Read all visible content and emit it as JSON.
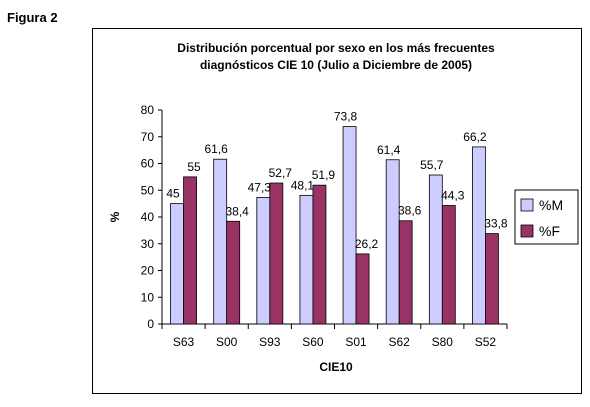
{
  "figure_label": "Figura 2",
  "chart_data": {
    "type": "bar",
    "title_line1": "Distribución porcentual por sexo en los más frecuentes",
    "title_line2": "diagnósticos CIE 10 (Julio a Diciembre de 2005)",
    "xlabel": "CIE10",
    "ylabel": "%",
    "ylim": [
      0,
      80
    ],
    "yticks": [
      0,
      10,
      20,
      30,
      40,
      50,
      60,
      70,
      80
    ],
    "categories": [
      "S63",
      "S00",
      "S93",
      "S60",
      "S01",
      "S62",
      "S80",
      "S52"
    ],
    "series": [
      {
        "name": "%M",
        "color": "#ccccff",
        "values": [
          45,
          61.6,
          47.3,
          48.1,
          73.8,
          61.4,
          55.7,
          66.2
        ],
        "labels": [
          "45",
          "61,6",
          "47,3",
          "48,1",
          "73,8",
          "61,4",
          "55,7",
          "66,2"
        ]
      },
      {
        "name": "%F",
        "color": "#993366",
        "values": [
          55,
          38.4,
          52.7,
          51.9,
          26.2,
          38.6,
          44.3,
          33.8
        ],
        "labels": [
          "55",
          "38,4",
          "52,7",
          "51,9",
          "26,2",
          "38,6",
          "44,3",
          "33,8"
        ]
      }
    ],
    "grid": false,
    "legend": "right"
  }
}
